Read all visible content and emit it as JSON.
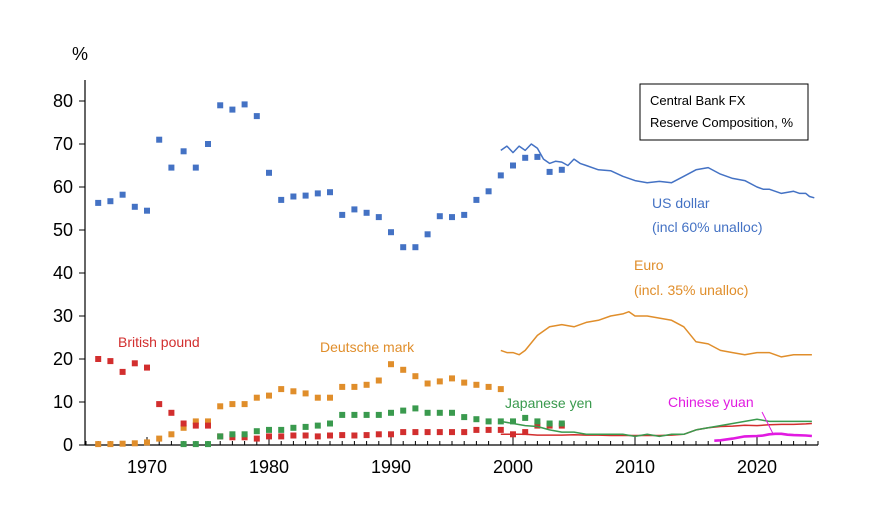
{
  "chart_data": {
    "type": "scatter",
    "ylabel": "%",
    "ylim": [
      0,
      85
    ],
    "xlim": [
      1965,
      2025
    ],
    "y_ticks": [
      0,
      10,
      20,
      30,
      40,
      50,
      60,
      70,
      80
    ],
    "x_ticks": [
      1970,
      1980,
      1990,
      2000,
      2010,
      2020
    ],
    "grid": false,
    "legend_box": {
      "lines": [
        "Central Bank FX",
        "Reserve Composition, %"
      ],
      "placement": "top-right"
    },
    "series": [
      {
        "name": "US dollar",
        "color": "#4472C4",
        "labels": [
          "US dollar",
          "(incl 60% unalloc)"
        ],
        "points": [
          [
            1966,
            56.3
          ],
          [
            1967,
            56.7
          ],
          [
            1968,
            58.2
          ],
          [
            1969,
            55.4
          ],
          [
            1970,
            54.5
          ],
          [
            1971,
            71.0
          ],
          [
            1972,
            64.5
          ],
          [
            1973,
            68.3
          ],
          [
            1974,
            64.5
          ],
          [
            1975,
            70.0
          ],
          [
            1976,
            79.0
          ],
          [
            1977,
            78.0
          ],
          [
            1978,
            79.2
          ],
          [
            1979,
            76.5
          ],
          [
            1980,
            63.3
          ],
          [
            1981,
            57.0
          ],
          [
            1982,
            57.8
          ],
          [
            1983,
            58.0
          ],
          [
            1984,
            58.5
          ],
          [
            1985,
            58.8
          ],
          [
            1986,
            53.5
          ],
          [
            1987,
            54.8
          ],
          [
            1988,
            54.0
          ],
          [
            1989,
            53.0
          ],
          [
            1990,
            49.5
          ],
          [
            1991,
            46.0
          ],
          [
            1992,
            46.0
          ],
          [
            1993,
            49.0
          ],
          [
            1994,
            53.2
          ],
          [
            1995,
            53.0
          ],
          [
            1996,
            53.5
          ],
          [
            1997,
            57.0
          ],
          [
            1998,
            59.0
          ],
          [
            1999,
            62.7
          ],
          [
            2000,
            65.0
          ],
          [
            2001,
            66.8
          ],
          [
            2002,
            67.0
          ],
          [
            2003,
            63.5
          ],
          [
            2004,
            64.0
          ]
        ],
        "line": [
          [
            1999,
            68.5
          ],
          [
            1999.5,
            69.5
          ],
          [
            2000,
            68.0
          ],
          [
            2000.5,
            69.5
          ],
          [
            2001,
            68.5
          ],
          [
            2001.5,
            70.0
          ],
          [
            2002,
            69.0
          ],
          [
            2002.5,
            66.5
          ],
          [
            2003,
            65.5
          ],
          [
            2003.5,
            66.0
          ],
          [
            2004,
            65.8
          ],
          [
            2004.5,
            65.0
          ],
          [
            2005,
            66.5
          ],
          [
            2005.5,
            65.5
          ],
          [
            2006,
            65.0
          ],
          [
            2007,
            64.0
          ],
          [
            2008,
            63.8
          ],
          [
            2009,
            62.5
          ],
          [
            2010,
            61.5
          ],
          [
            2011,
            61.0
          ],
          [
            2012,
            61.3
          ],
          [
            2013,
            61.0
          ],
          [
            2014,
            62.5
          ],
          [
            2015,
            64.0
          ],
          [
            2016,
            64.5
          ],
          [
            2017,
            63.0
          ],
          [
            2018,
            62.0
          ],
          [
            2019,
            61.5
          ],
          [
            2020,
            60.0
          ],
          [
            2020.5,
            59.5
          ],
          [
            2021,
            59.5
          ],
          [
            2021.5,
            59.0
          ],
          [
            2022,
            58.5
          ],
          [
            2023,
            59.0
          ],
          [
            2023.5,
            58.5
          ],
          [
            2024,
            58.5
          ],
          [
            2024.3,
            57.8
          ],
          [
            2024.7,
            57.5
          ]
        ]
      },
      {
        "name": "Euro",
        "color": "#E08E2B",
        "labels": [
          "Euro",
          "(incl. 35% unalloc)"
        ],
        "points": [],
        "line": [
          [
            1999,
            22.0
          ],
          [
            1999.5,
            21.5
          ],
          [
            2000,
            21.5
          ],
          [
            2000.5,
            21.0
          ],
          [
            2001,
            22.0
          ],
          [
            2002,
            25.5
          ],
          [
            2003,
            27.5
          ],
          [
            2004,
            28.0
          ],
          [
            2005,
            27.5
          ],
          [
            2006,
            28.5
          ],
          [
            2007,
            29.0
          ],
          [
            2008,
            30.0
          ],
          [
            2009,
            30.5
          ],
          [
            2009.5,
            31.0
          ],
          [
            2010,
            30.0
          ],
          [
            2011,
            30.0
          ],
          [
            2012,
            29.5
          ],
          [
            2013,
            29.0
          ],
          [
            2014,
            27.5
          ],
          [
            2015,
            24.0
          ],
          [
            2016,
            23.5
          ],
          [
            2017,
            22.0
          ],
          [
            2018,
            21.5
          ],
          [
            2019,
            21.0
          ],
          [
            2020,
            21.5
          ],
          [
            2021,
            21.5
          ],
          [
            2022,
            20.5
          ],
          [
            2023,
            21.0
          ],
          [
            2024,
            21.0
          ],
          [
            2024.5,
            21.0
          ]
        ]
      },
      {
        "name": "Deutsche mark",
        "color": "#E08E2B",
        "labels": [
          "Deutsche mark"
        ],
        "points": [
          [
            1966,
            0.2
          ],
          [
            1967,
            0.2
          ],
          [
            1968,
            0.3
          ],
          [
            1969,
            0.4
          ],
          [
            1970,
            0.6
          ],
          [
            1971,
            1.5
          ],
          [
            1972,
            2.5
          ],
          [
            1973,
            4.0
          ],
          [
            1974,
            5.5
          ],
          [
            1975,
            5.5
          ],
          [
            1976,
            9.0
          ],
          [
            1977,
            9.5
          ],
          [
            1978,
            9.5
          ],
          [
            1979,
            11.0
          ],
          [
            1980,
            11.5
          ],
          [
            1981,
            13.0
          ],
          [
            1982,
            12.5
          ],
          [
            1983,
            12.0
          ],
          [
            1984,
            11.0
          ],
          [
            1985,
            11.0
          ],
          [
            1986,
            13.5
          ],
          [
            1987,
            13.5
          ],
          [
            1988,
            14.0
          ],
          [
            1989,
            15.0
          ],
          [
            1990,
            18.8
          ],
          [
            1991,
            17.5
          ],
          [
            1992,
            16.0
          ],
          [
            1993,
            14.3
          ],
          [
            1994,
            14.8
          ],
          [
            1995,
            15.5
          ],
          [
            1996,
            14.5
          ],
          [
            1997,
            14.0
          ],
          [
            1998,
            13.5
          ],
          [
            1999,
            13.0
          ]
        ],
        "line": []
      },
      {
        "name": "British pound",
        "color": "#D22E2E",
        "labels": [
          "British pound"
        ],
        "points": [
          [
            1966,
            20.0
          ],
          [
            1967,
            19.5
          ],
          [
            1968,
            17.0
          ],
          [
            1969,
            19.0
          ],
          [
            1970,
            18.0
          ],
          [
            1971,
            9.5
          ],
          [
            1972,
            7.5
          ],
          [
            1973,
            5.0
          ],
          [
            1974,
            4.5
          ],
          [
            1975,
            4.5
          ],
          [
            1976,
            2.0
          ],
          [
            1977,
            1.8
          ],
          [
            1978,
            1.8
          ],
          [
            1979,
            1.5
          ],
          [
            1980,
            2.0
          ],
          [
            1981,
            2.0
          ],
          [
            1982,
            2.2
          ],
          [
            1983,
            2.2
          ],
          [
            1984,
            2.0
          ],
          [
            1985,
            2.2
          ],
          [
            1986,
            2.3
          ],
          [
            1987,
            2.2
          ],
          [
            1988,
            2.3
          ],
          [
            1989,
            2.5
          ],
          [
            1990,
            2.5
          ],
          [
            1991,
            3.0
          ],
          [
            1992,
            3.0
          ],
          [
            1993,
            3.0
          ],
          [
            1994,
            3.0
          ],
          [
            1995,
            3.0
          ],
          [
            1996,
            3.0
          ],
          [
            1997,
            3.5
          ],
          [
            1998,
            3.5
          ],
          [
            1999,
            3.5
          ],
          [
            2000,
            2.5
          ],
          [
            2001,
            3.0
          ],
          [
            2002,
            4.5
          ],
          [
            2003,
            4.5
          ],
          [
            2004,
            4.5
          ]
        ],
        "line": [
          [
            1999,
            2.5
          ],
          [
            2000,
            2.5
          ],
          [
            2001,
            2.5
          ],
          [
            2002,
            2.3
          ],
          [
            2003,
            2.3
          ],
          [
            2004,
            2.3
          ],
          [
            2005,
            2.4
          ],
          [
            2006,
            2.3
          ],
          [
            2007,
            2.3
          ],
          [
            2008,
            2.2
          ],
          [
            2009,
            2.2
          ],
          [
            2010,
            2.2
          ],
          [
            2011,
            2.2
          ],
          [
            2012,
            2.2
          ],
          [
            2013,
            2.3
          ],
          [
            2014,
            2.5
          ],
          [
            2015,
            3.5
          ],
          [
            2016,
            4.0
          ],
          [
            2017,
            4.3
          ],
          [
            2018,
            4.4
          ],
          [
            2019,
            4.6
          ],
          [
            2020,
            4.5
          ],
          [
            2021,
            4.7
          ],
          [
            2022,
            4.8
          ],
          [
            2023,
            4.8
          ],
          [
            2024,
            4.9
          ],
          [
            2024.5,
            5.0
          ]
        ]
      },
      {
        "name": "Japanese yen",
        "color": "#3A9A4E",
        "labels": [
          "Japanese yen"
        ],
        "points": [
          [
            1973,
            0.2
          ],
          [
            1974,
            0.2
          ],
          [
            1975,
            0.2
          ],
          [
            1976,
            2.0
          ],
          [
            1977,
            2.5
          ],
          [
            1978,
            2.5
          ],
          [
            1979,
            3.2
          ],
          [
            1980,
            3.5
          ],
          [
            1981,
            3.5
          ],
          [
            1982,
            4.0
          ],
          [
            1983,
            4.2
          ],
          [
            1984,
            4.5
          ],
          [
            1985,
            5.0
          ],
          [
            1986,
            7.0
          ],
          [
            1987,
            7.0
          ],
          [
            1988,
            7.0
          ],
          [
            1989,
            7.0
          ],
          [
            1990,
            7.5
          ],
          [
            1991,
            8.0
          ],
          [
            1992,
            8.5
          ],
          [
            1993,
            7.5
          ],
          [
            1994,
            7.5
          ],
          [
            1995,
            7.5
          ],
          [
            1996,
            6.5
          ],
          [
            1997,
            6.0
          ],
          [
            1998,
            5.5
          ],
          [
            1999,
            5.5
          ],
          [
            2000,
            5.5
          ],
          [
            2001,
            6.3
          ],
          [
            2002,
            5.5
          ],
          [
            2003,
            5.0
          ],
          [
            2004,
            5.0
          ]
        ],
        "line": [
          [
            1999,
            5.5
          ],
          [
            2000,
            5.0
          ],
          [
            2001,
            4.5
          ],
          [
            2002,
            4.3
          ],
          [
            2003,
            3.5
          ],
          [
            2004,
            3.0
          ],
          [
            2005,
            3.0
          ],
          [
            2006,
            2.5
          ],
          [
            2007,
            2.5
          ],
          [
            2008,
            2.5
          ],
          [
            2009,
            2.5
          ],
          [
            2010,
            2.0
          ],
          [
            2011,
            2.5
          ],
          [
            2012,
            2.0
          ],
          [
            2013,
            2.5
          ],
          [
            2014,
            2.5
          ],
          [
            2015,
            3.5
          ],
          [
            2016,
            4.0
          ],
          [
            2017,
            4.5
          ],
          [
            2018,
            5.0
          ],
          [
            2019,
            5.5
          ],
          [
            2020,
            6.0
          ],
          [
            2021,
            5.5
          ],
          [
            2022,
            5.5
          ],
          [
            2023,
            5.5
          ],
          [
            2024,
            5.5
          ],
          [
            2024.5,
            5.5
          ]
        ]
      },
      {
        "name": "Chinese yuan",
        "color": "#E11BE1",
        "labels": [
          "Chinese yuan"
        ],
        "points": [],
        "line": [
          [
            2016.5,
            1.0
          ],
          [
            2017,
            1.1
          ],
          [
            2018,
            1.5
          ],
          [
            2019,
            2.0
          ],
          [
            2020,
            2.1
          ],
          [
            2020.5,
            2.2
          ],
          [
            2021,
            2.5
          ],
          [
            2021.5,
            2.6
          ],
          [
            2022,
            2.6
          ],
          [
            2022.5,
            2.4
          ],
          [
            2023,
            2.3
          ],
          [
            2024,
            2.2
          ],
          [
            2024.5,
            2.1
          ]
        ]
      }
    ]
  }
}
